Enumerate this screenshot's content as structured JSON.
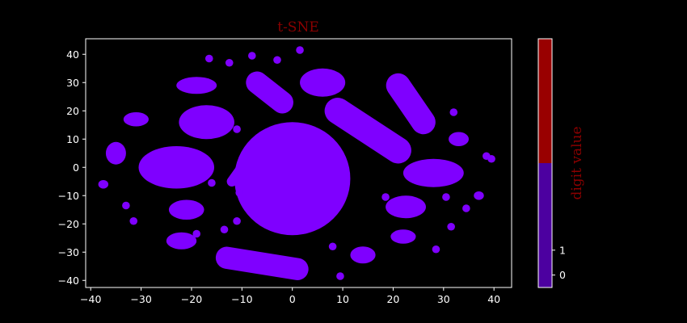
{
  "chart_data": {
    "type": "scatter",
    "title": "t-SNE",
    "xlabel": "",
    "ylabel": "",
    "xlim": [
      -41,
      43.5
    ],
    "ylim": [
      -42.5,
      45.5
    ],
    "xticks": [
      -40,
      -30,
      -20,
      -10,
      0,
      10,
      20,
      30,
      40
    ],
    "yticks": [
      -40,
      -30,
      -20,
      -10,
      0,
      10,
      20,
      30,
      40
    ],
    "grid": false,
    "point_color": "#7f00ff",
    "background": "#000000",
    "clusters": [
      {
        "cx": 0,
        "cy": -4,
        "rx": 11.5,
        "ry": 20,
        "shape": "ellipse"
      },
      {
        "cx": -23,
        "cy": 0,
        "rx": 7.5,
        "ry": 7.5,
        "shape": "ellipse"
      },
      {
        "cx": -17,
        "cy": 16,
        "rx": 5.5,
        "ry": 6,
        "shape": "ellipse"
      },
      {
        "cx": -19,
        "cy": 29,
        "rx": 4,
        "ry": 3,
        "shape": "ellipse"
      },
      {
        "cx": 6,
        "cy": 30,
        "rx": 4.5,
        "ry": 5,
        "shape": "ellipse"
      },
      {
        "cx": -31,
        "cy": 17,
        "rx": 2.5,
        "ry": 2.5,
        "shape": "ellipse"
      },
      {
        "cx": -35,
        "cy": 5,
        "rx": 2,
        "ry": 4,
        "shape": "ellipse"
      },
      {
        "cx": -37.5,
        "cy": -6,
        "rx": 1,
        "ry": 1.5,
        "shape": "ellipse"
      },
      {
        "cx": -21,
        "cy": -15,
        "rx": 3.5,
        "ry": 3.5,
        "shape": "ellipse"
      },
      {
        "cx": -22,
        "cy": -26,
        "rx": 3,
        "ry": 3,
        "shape": "ellipse"
      },
      {
        "cx": 22.5,
        "cy": -14,
        "rx": 4,
        "ry": 4,
        "shape": "ellipse"
      },
      {
        "cx": 28,
        "cy": -2,
        "rx": 6,
        "ry": 5,
        "shape": "ellipse"
      },
      {
        "cx": 33,
        "cy": 10,
        "rx": 2,
        "ry": 2.5,
        "shape": "ellipse"
      },
      {
        "cx": 22,
        "cy": -24.5,
        "rx": 2.5,
        "ry": 2.5,
        "shape": "ellipse"
      },
      {
        "cx": 14,
        "cy": -31,
        "rx": 2.5,
        "ry": 3,
        "shape": "ellipse"
      },
      {
        "cx": 37,
        "cy": -10,
        "rx": 1,
        "ry": 1.5,
        "shape": "ellipse"
      },
      {
        "x1": 9,
        "y1": 20,
        "x2": 21,
        "y2": 6,
        "w": 2.6,
        "shape": "strip"
      },
      {
        "x1": 21,
        "y1": 29,
        "x2": 26,
        "y2": 16,
        "w": 2.4,
        "shape": "strip"
      },
      {
        "x1": -13,
        "y1": -32,
        "x2": 1,
        "y2": -36,
        "w": 2.2,
        "shape": "strip"
      },
      {
        "x1": -7,
        "y1": 30,
        "x2": -2,
        "y2": 23,
        "w": 2.2,
        "shape": "strip"
      },
      {
        "x1": -12,
        "y1": -5,
        "x2": -10,
        "y2": 0,
        "w": 1,
        "shape": "strip"
      }
    ],
    "points": [
      [
        -16.5,
        38.5
      ],
      [
        -12.5,
        37
      ],
      [
        -8,
        39.5
      ],
      [
        -3,
        38
      ],
      [
        1.5,
        41.5
      ],
      [
        -2.5,
        23
      ],
      [
        32,
        19.5
      ],
      [
        39.5,
        3
      ],
      [
        34.5,
        -14.5
      ],
      [
        28.5,
        -29
      ],
      [
        9.5,
        -38.5
      ],
      [
        -19,
        -23.5
      ],
      [
        -31.5,
        -19
      ],
      [
        -33,
        -13.5
      ],
      [
        -16,
        -5.5
      ],
      [
        -11,
        13.5
      ],
      [
        -10.5,
        -9
      ],
      [
        -13.5,
        -22
      ],
      [
        -11,
        -19
      ],
      [
        1.5,
        -34
      ],
      [
        8,
        -28
      ],
      [
        30.5,
        -10.5
      ],
      [
        31.5,
        -21
      ],
      [
        18.5,
        -10.5
      ],
      [
        38.5,
        4
      ]
    ],
    "colorbar": {
      "label": "digit value",
      "ticks": [
        "0",
        "1"
      ],
      "tick_values": [
        0,
        1
      ],
      "range": [
        -0.5,
        9.5
      ],
      "colors": [
        {
          "from": -0.5,
          "to": 4.5,
          "color": "#4c00a0"
        },
        {
          "from": 4.5,
          "to": 9.5,
          "color": "#990000"
        }
      ]
    }
  }
}
